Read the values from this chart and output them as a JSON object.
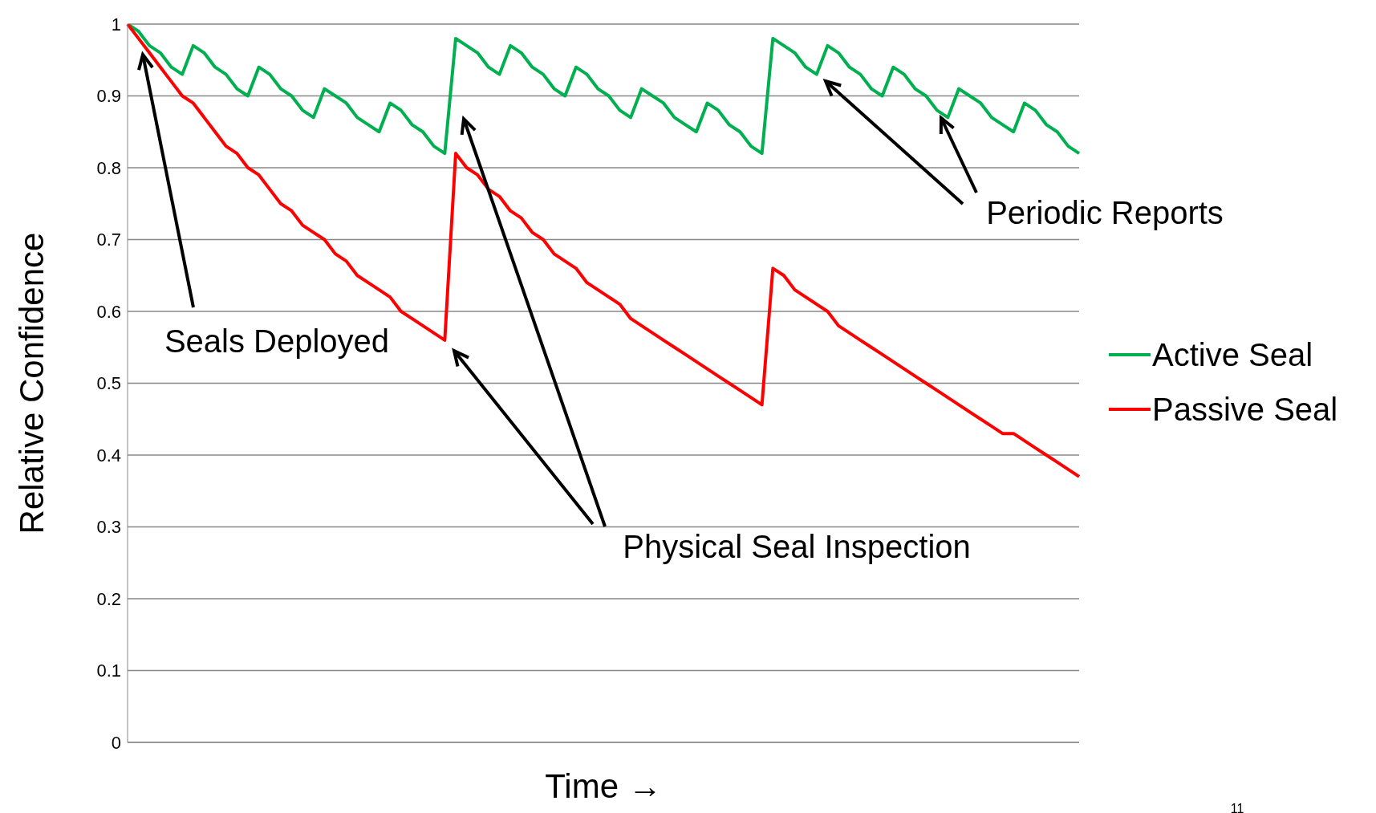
{
  "chart_data": {
    "type": "line",
    "xlabel": "Time →",
    "ylabel": "Relative Confidence",
    "categories": [
      null,
      null,
      null,
      null,
      null,
      null,
      null,
      null,
      null,
      null,
      null,
      null,
      null,
      null,
      null,
      null,
      null,
      null,
      null,
      null,
      null,
      null,
      null,
      null,
      null,
      null,
      null,
      null,
      null,
      null,
      null,
      null,
      null,
      null,
      null,
      null,
      null,
      null,
      null,
      null,
      null,
      null,
      null,
      null,
      null,
      null,
      null,
      null,
      null,
      null,
      null,
      null,
      null,
      null,
      null,
      null,
      null,
      null,
      null,
      null,
      null,
      null,
      null,
      null,
      null,
      null,
      null,
      null,
      null,
      null,
      null,
      null,
      null,
      null,
      null,
      null,
      null,
      null,
      null,
      null,
      null,
      null,
      null,
      null,
      null,
      null,
      null,
      null
    ],
    "series": [
      {
        "name": "Active Seal",
        "color": "#00b050",
        "values": [
          1,
          0.99,
          0.97,
          0.96,
          0.94,
          0.93,
          0.97,
          0.96,
          0.94,
          0.93,
          0.91,
          0.9,
          0.94,
          0.93,
          0.91,
          0.9,
          0.88,
          0.87,
          0.91,
          0.9,
          0.89,
          0.87,
          0.86,
          0.85,
          0.89,
          0.88,
          0.86,
          0.85,
          0.83,
          0.82,
          0.98,
          0.97,
          0.96,
          0.94,
          0.93,
          0.97,
          0.96,
          0.94,
          0.93,
          0.91,
          0.9,
          0.94,
          0.93,
          0.91,
          0.9,
          0.88,
          0.87,
          0.91,
          0.9,
          0.89,
          0.87,
          0.86,
          0.85,
          0.89,
          0.88,
          0.86,
          0.85,
          0.83,
          0.82,
          0.98,
          0.97,
          0.96,
          0.94,
          0.93,
          0.97,
          0.96,
          0.94,
          0.93,
          0.91,
          0.9,
          0.94,
          0.93,
          0.91,
          0.9,
          0.88,
          0.87,
          0.91,
          0.9,
          0.89,
          0.87,
          0.86,
          0.85,
          0.89,
          0.88,
          0.86,
          0.85,
          0.83,
          0.82
        ]
      },
      {
        "name": "Passive Seal",
        "color": "#ff0000",
        "values": [
          1,
          0.98,
          0.96,
          0.94,
          0.92,
          0.9,
          0.89,
          0.87,
          0.85,
          0.83,
          0.82,
          0.8,
          0.79,
          0.77,
          0.75,
          0.74,
          0.72,
          0.71,
          0.7,
          0.68,
          0.67,
          0.65,
          0.64,
          0.63,
          0.62,
          0.6,
          0.59,
          0.58,
          0.57,
          0.56,
          0.82,
          0.8,
          0.79,
          0.77,
          0.76,
          0.74,
          0.73,
          0.71,
          0.7,
          0.68,
          0.67,
          0.66,
          0.64,
          0.63,
          0.62,
          0.61,
          0.59,
          0.58,
          0.57,
          0.56,
          0.55,
          0.54,
          0.53,
          0.52,
          0.51,
          0.5,
          0.49,
          0.48,
          0.47,
          0.66,
          0.65,
          0.63,
          0.62,
          0.61,
          0.6,
          0.58,
          0.57,
          0.56,
          0.55,
          0.54,
          0.53,
          0.52,
          0.51,
          0.5,
          0.49,
          0.48,
          0.47,
          0.46,
          0.45,
          0.44,
          0.43,
          0.43,
          0.42,
          0.41,
          0.4,
          0.39,
          0.38,
          0.37
        ]
      }
    ],
    "ylim": [
      0,
      1
    ],
    "yticks": [
      0,
      0.1,
      0.2,
      0.3,
      0.4,
      0.5,
      0.6,
      0.7,
      0.8,
      0.9,
      1
    ],
    "grid": "y",
    "legend": "right",
    "marker": "none",
    "line_style": "solid",
    "annotations": [
      "Seals Deployed",
      "Physical Seal Inspection",
      "Periodic Reports",
      "11"
    ]
  }
}
